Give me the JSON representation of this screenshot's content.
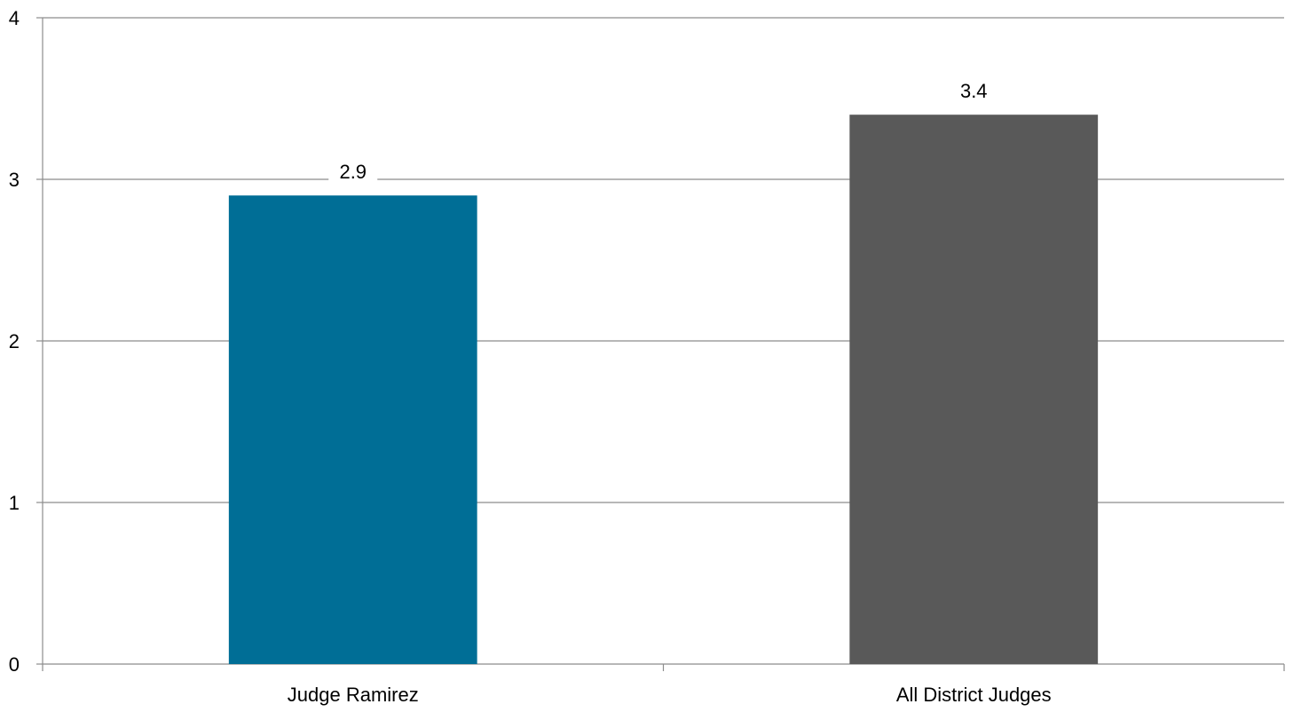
{
  "chart_data": {
    "type": "bar",
    "categories": [
      "Judge Ramirez",
      "All District Judges"
    ],
    "values": [
      2.9,
      3.4
    ],
    "value_labels": [
      "2.9",
      "3.4"
    ],
    "colors": [
      "#006E96",
      "#595959"
    ],
    "title": "",
    "xlabel": "",
    "ylabel": "",
    "ylim": [
      0,
      4
    ],
    "yticks": [
      "0",
      "1",
      "2",
      "3",
      "4"
    ],
    "grid": true,
    "legend": "none"
  }
}
